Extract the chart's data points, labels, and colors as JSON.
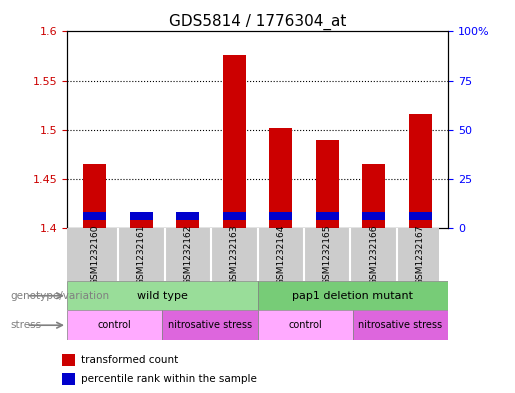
{
  "title": "GDS5814 / 1776304_at",
  "samples": [
    "GSM1232160",
    "GSM1232161",
    "GSM1232162",
    "GSM1232163",
    "GSM1232164",
    "GSM1232165",
    "GSM1232166",
    "GSM1232167"
  ],
  "red_values": [
    1.465,
    1.413,
    1.413,
    1.576,
    1.502,
    1.49,
    1.465,
    1.516
  ],
  "y_min": 1.4,
  "y_max": 1.6,
  "y_ticks": [
    1.4,
    1.45,
    1.5,
    1.55,
    1.6
  ],
  "y2_ticks": [
    0,
    25,
    50,
    75,
    100
  ],
  "red_color": "#cc0000",
  "blue_color": "#0000cc",
  "bar_width": 0.5,
  "geno_colors": [
    "#99dd99",
    "#77cc77"
  ],
  "geno_labels": [
    "wild type",
    "pap1 deletion mutant"
  ],
  "geno_ranges": [
    [
      0,
      4
    ],
    [
      4,
      8
    ]
  ],
  "stress_colors": [
    "#ffaaff",
    "#dd66dd",
    "#ffaaff",
    "#dd66dd"
  ],
  "stress_labels": [
    "control",
    "nitrosative stress",
    "control",
    "nitrosative stress"
  ],
  "stress_ranges": [
    [
      0,
      2
    ],
    [
      2,
      4
    ],
    [
      4,
      6
    ],
    [
      6,
      8
    ]
  ],
  "label_genotype": "genotype/variation",
  "label_stress": "stress",
  "legend_red": "transformed count",
  "legend_blue": "percentile rank within the sample",
  "sample_bg_color": "#cccccc",
  "title_fontsize": 11,
  "tick_fontsize": 8
}
